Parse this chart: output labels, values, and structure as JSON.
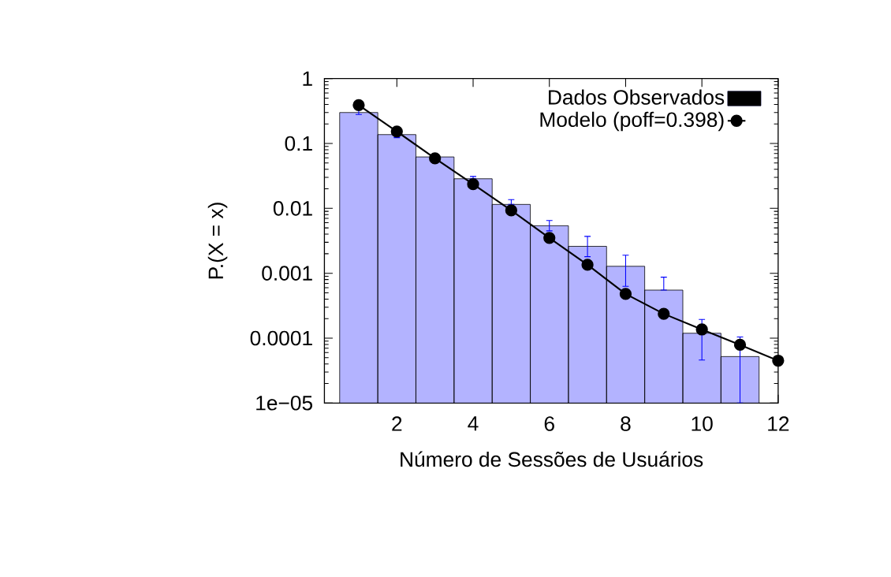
{
  "chart_data": {
    "type": "bar",
    "xlabel": "Número de Sessões de Usuários",
    "ylabel": "P.(X = x)",
    "xlim": [
      0.1,
      12
    ],
    "xticks": [
      2,
      4,
      6,
      8,
      10,
      12
    ],
    "ylim": [
      1e-05,
      1
    ],
    "yticks": [
      {
        "value": 1e-05,
        "label": "1e−05"
      },
      0.0001,
      0.001,
      0.01,
      0.1,
      1
    ],
    "log": "y",
    "legend": "top right",
    "marker": "circle",
    "series": [
      {
        "name": "Dados Observados",
        "color": "#b3b3ff",
        "x": [
          1,
          2,
          3,
          4,
          5,
          6,
          7,
          8,
          9,
          10,
          11
        ],
        "values": [
          0.3,
          0.137,
          0.062,
          0.0286,
          0.0115,
          0.0054,
          0.0026,
          0.00128,
          0.00055,
          0.000119,
          5.2e-05
        ],
        "errors": [
          [
            0.28,
            0.33
          ],
          [
            0.123,
            0.137
          ],
          [
            0.06,
            0.064
          ],
          [
            0.0286,
            0.031
          ],
          [
            0.0115,
            0.0136
          ],
          [
            0.0045,
            0.0065
          ],
          [
            0.0018,
            0.0037
          ],
          [
            0.00063,
            0.0019
          ],
          [
            0.00055,
            0.00087
          ],
          [
            4.6e-05,
            0.000194
          ],
          [
            1e-05,
            0.000104
          ]
        ]
      },
      {
        "name": "Modelo (poff=0.398)",
        "type": "line",
        "color": "#000000",
        "x": [
          1,
          2,
          3,
          4,
          5,
          6,
          7,
          8,
          9,
          10,
          11,
          12
        ],
        "values": [
          0.39,
          0.153,
          0.059,
          0.0236,
          0.0093,
          0.0035,
          0.00135,
          0.00048,
          0.000237,
          0.000136,
          7.9e-05,
          4.5e-05
        ]
      }
    ]
  }
}
